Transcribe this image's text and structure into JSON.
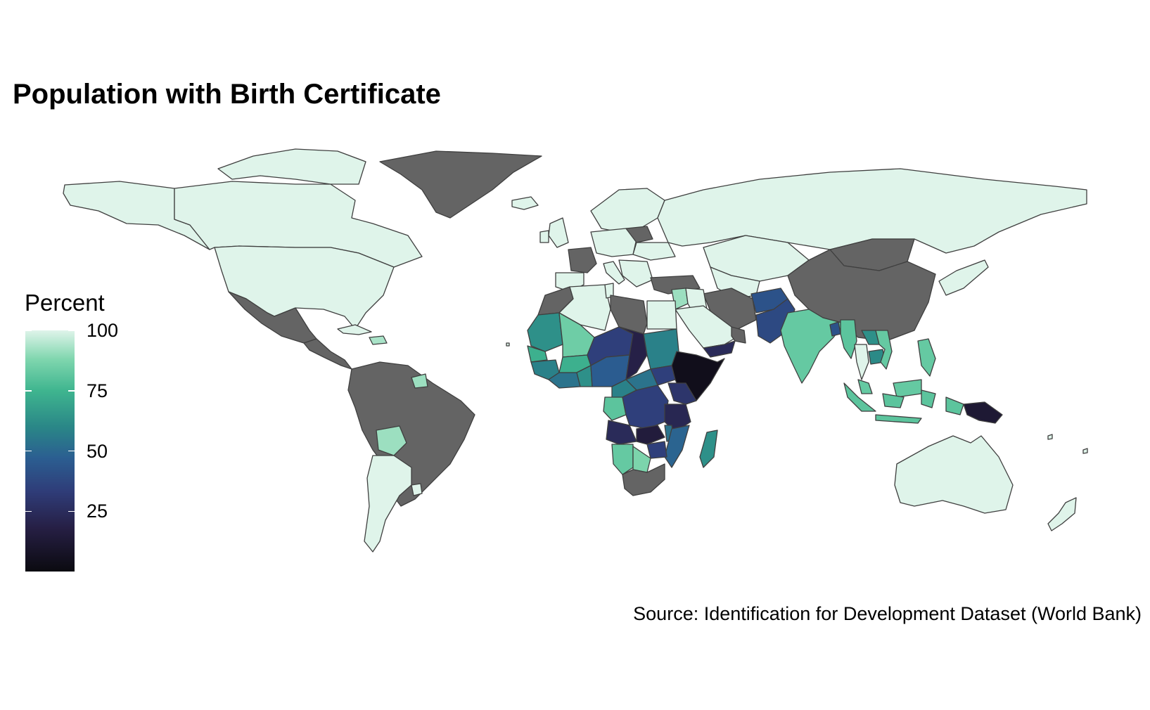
{
  "title": "Population with Birth Certificate",
  "legend": {
    "title": "Percent",
    "ticks": [
      {
        "label": "100",
        "value": 100
      },
      {
        "label": "75",
        "value": 75
      },
      {
        "label": "50",
        "value": 50
      },
      {
        "label": "25",
        "value": 25
      }
    ],
    "range": [
      0,
      100
    ],
    "palette": [
      "#dff4ea",
      "#7fd6ae",
      "#3fb58f",
      "#2a8787",
      "#2b5e91",
      "#2f3c78",
      "#261f44",
      "#0b0a10"
    ]
  },
  "source": "Source: Identification for Development Dataset (World Bank)",
  "colors": {
    "no_data": "#646464",
    "border": "#3f3f3f",
    "background": "#ffffff"
  },
  "regions": [
    {
      "id": "canada",
      "level": 100
    },
    {
      "id": "alaska",
      "level": 100
    },
    {
      "id": "usa",
      "level": 100
    },
    {
      "id": "arctic-islands",
      "level": 100
    },
    {
      "id": "greenland",
      "level": null
    },
    {
      "id": "iceland",
      "level": 100
    },
    {
      "id": "mexico",
      "level": null
    },
    {
      "id": "central-america",
      "level": null
    },
    {
      "id": "cuba",
      "level": 100
    },
    {
      "id": "hispaniola",
      "level": 92
    },
    {
      "id": "south-america",
      "level": null
    },
    {
      "id": "guyana",
      "level": 90
    },
    {
      "id": "bolivia",
      "level": 90
    },
    {
      "id": "argentina",
      "level": 100
    },
    {
      "id": "uruguay",
      "level": 100
    },
    {
      "id": "scandinavia",
      "level": 100
    },
    {
      "id": "uk",
      "level": 100
    },
    {
      "id": "ireland",
      "level": 100
    },
    {
      "id": "france",
      "level": null
    },
    {
      "id": "iberia",
      "level": 100
    },
    {
      "id": "central-europe",
      "level": 100
    },
    {
      "id": "italy",
      "level": 100
    },
    {
      "id": "belarus",
      "level": null
    },
    {
      "id": "ukraine",
      "level": 100
    },
    {
      "id": "balkans",
      "level": 100
    },
    {
      "id": "turkey",
      "level": null
    },
    {
      "id": "russia",
      "level": 100
    },
    {
      "id": "kazakhstan",
      "level": 100
    },
    {
      "id": "mongolia",
      "level": null
    },
    {
      "id": "china",
      "level": null
    },
    {
      "id": "central-asia",
      "level": 100
    },
    {
      "id": "iran",
      "level": null
    },
    {
      "id": "afghanistan",
      "level": 38
    },
    {
      "id": "pakistan",
      "level": 34
    },
    {
      "id": "india",
      "level": 80
    },
    {
      "id": "bangladesh",
      "level": 38
    },
    {
      "id": "myanmar",
      "level": 78
    },
    {
      "id": "thailand",
      "level": 100
    },
    {
      "id": "laos",
      "level": 60
    },
    {
      "id": "vietnam",
      "level": 80
    },
    {
      "id": "cambodia",
      "level": 58
    },
    {
      "id": "malaysia",
      "level": 80
    },
    {
      "id": "indonesia",
      "level": 78
    },
    {
      "id": "philippines",
      "level": 80
    },
    {
      "id": "png",
      "level": 10
    },
    {
      "id": "korea-japan",
      "level": 100
    },
    {
      "id": "australia",
      "level": 100
    },
    {
      "id": "new-zealand",
      "level": 100
    },
    {
      "id": "levant",
      "level": 90
    },
    {
      "id": "iraq-syria",
      "level": 100
    },
    {
      "id": "saudi-arabia",
      "level": 100
    },
    {
      "id": "yemen",
      "level": 20
    },
    {
      "id": "oman",
      "level": null
    },
    {
      "id": "morocco",
      "level": null
    },
    {
      "id": "algeria",
      "level": 100
    },
    {
      "id": "tunisia",
      "level": 100
    },
    {
      "id": "libya",
      "level": null
    },
    {
      "id": "egypt",
      "level": 100
    },
    {
      "id": "mauritania",
      "level": 60
    },
    {
      "id": "mali",
      "level": 82
    },
    {
      "id": "senegal",
      "level": 70
    },
    {
      "id": "guinea",
      "level": 55
    },
    {
      "id": "west-coast",
      "level": 50
    },
    {
      "id": "burkina-faso",
      "level": 70
    },
    {
      "id": "niger",
      "level": 30
    },
    {
      "id": "nigeria",
      "level": 42
    },
    {
      "id": "ghana",
      "level": 60
    },
    {
      "id": "chad",
      "level": 15
    },
    {
      "id": "sudan",
      "level": 55
    },
    {
      "id": "south-sudan",
      "level": 30
    },
    {
      "id": "ethiopia-somalia",
      "level": 3
    },
    {
      "id": "car",
      "level": 50
    },
    {
      "id": "cameroon",
      "level": 55
    },
    {
      "id": "gabon-congo",
      "level": 78
    },
    {
      "id": "drc",
      "level": 30
    },
    {
      "id": "uganda-kenya",
      "level": 25
    },
    {
      "id": "tanzania",
      "level": 18
    },
    {
      "id": "angola",
      "level": 20
    },
    {
      "id": "zambia",
      "level": 12
    },
    {
      "id": "mozambique",
      "level": 45
    },
    {
      "id": "malawi",
      "level": 50
    },
    {
      "id": "zimbabwe",
      "level": 30
    },
    {
      "id": "madagascar",
      "level": 60
    },
    {
      "id": "namibia",
      "level": 80
    },
    {
      "id": "botswana",
      "level": 85
    },
    {
      "id": "south-africa",
      "level": null
    }
  ]
}
